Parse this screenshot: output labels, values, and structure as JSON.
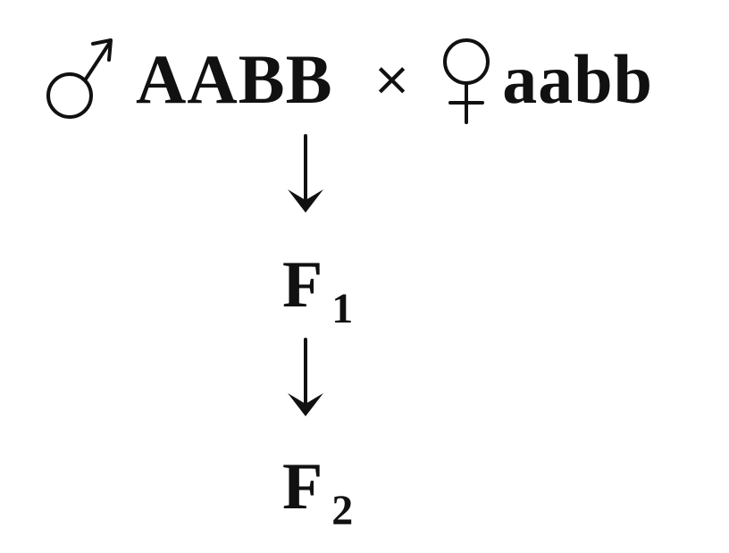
{
  "cross": {
    "male_symbol": "♂",
    "male_genotype": "AABB",
    "cross_sign": "×",
    "female_symbol": "♀",
    "female_genotype": "aabb"
  },
  "arrows": [
    {
      "icon": "down-arrow-icon"
    },
    {
      "icon": "down-arrow-icon"
    }
  ],
  "generations": [
    {
      "letter": "F",
      "subscript": "1"
    },
    {
      "letter": "F",
      "subscript": "2"
    }
  ]
}
